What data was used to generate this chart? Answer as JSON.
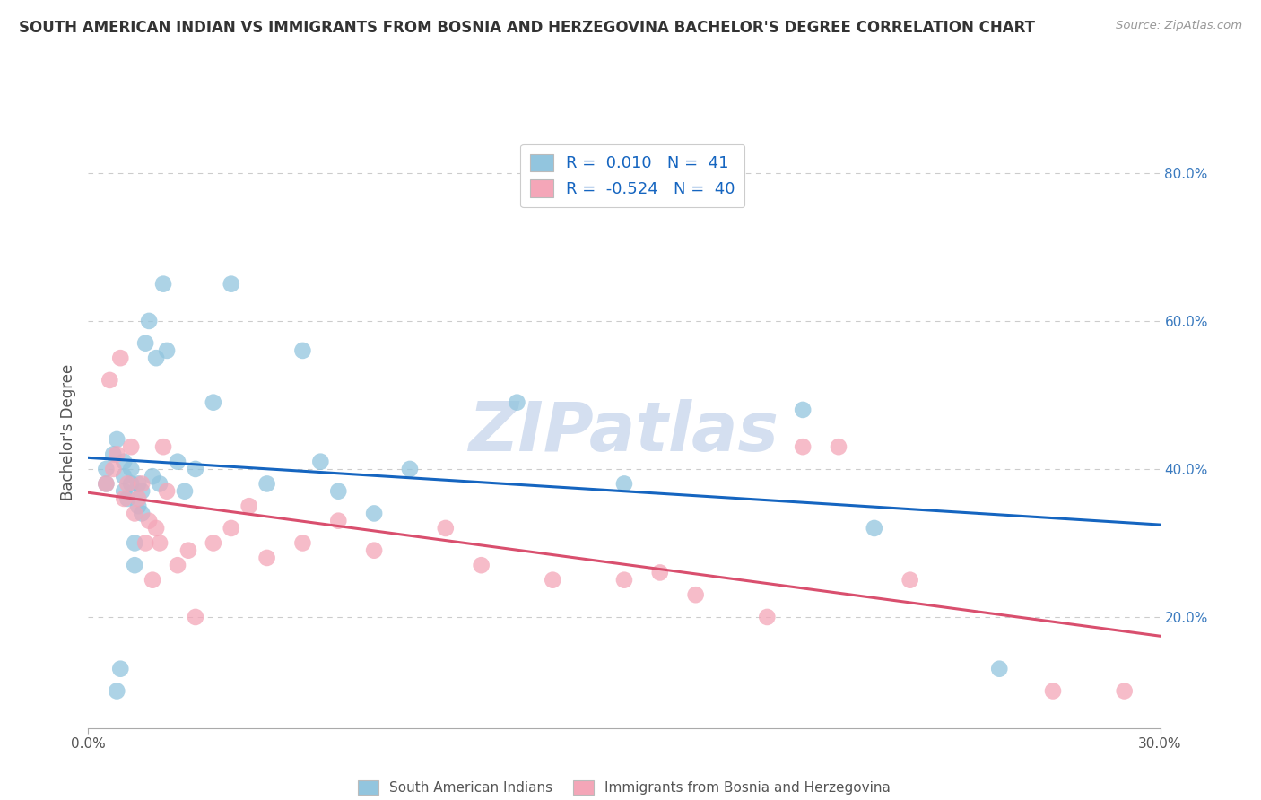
{
  "title": "SOUTH AMERICAN INDIAN VS IMMIGRANTS FROM BOSNIA AND HERZEGOVINA BACHELOR'S DEGREE CORRELATION CHART",
  "source": "Source: ZipAtlas.com",
  "ylabel": "Bachelor's Degree",
  "xlim": [
    0.0,
    0.3
  ],
  "ylim": [
    0.05,
    0.85
  ],
  "x_ticks": [
    0.0,
    0.3
  ],
  "x_tick_labels": [
    "0.0%",
    "30.0%"
  ],
  "y_ticks_right": [
    0.2,
    0.4,
    0.6,
    0.8
  ],
  "y_tick_labels_right": [
    "20.0%",
    "40.0%",
    "60.0%",
    "80.0%"
  ],
  "blue_color": "#92c5de",
  "pink_color": "#f4a6b8",
  "trend_blue": "#1565c0",
  "trend_pink": "#d94f6e",
  "legend_r_blue": "0.010",
  "legend_n_blue": "41",
  "legend_r_pink": "-0.524",
  "legend_n_pink": "40",
  "legend_label_blue": "South American Indians",
  "legend_label_pink": "Immigrants from Bosnia and Herzegovina",
  "blue_x": [
    0.005,
    0.005,
    0.007,
    0.008,
    0.008,
    0.009,
    0.01,
    0.01,
    0.01,
    0.011,
    0.012,
    0.012,
    0.013,
    0.013,
    0.014,
    0.014,
    0.015,
    0.015,
    0.016,
    0.017,
    0.018,
    0.019,
    0.02,
    0.021,
    0.022,
    0.025,
    0.027,
    0.03,
    0.035,
    0.04,
    0.05,
    0.06,
    0.065,
    0.07,
    0.08,
    0.09,
    0.12,
    0.15,
    0.2,
    0.22,
    0.255
  ],
  "blue_y": [
    0.38,
    0.4,
    0.42,
    0.44,
    0.1,
    0.13,
    0.37,
    0.39,
    0.41,
    0.36,
    0.38,
    0.4,
    0.3,
    0.27,
    0.35,
    0.38,
    0.34,
    0.37,
    0.57,
    0.6,
    0.39,
    0.55,
    0.38,
    0.65,
    0.56,
    0.41,
    0.37,
    0.4,
    0.49,
    0.65,
    0.38,
    0.56,
    0.41,
    0.37,
    0.34,
    0.4,
    0.49,
    0.38,
    0.48,
    0.32,
    0.13
  ],
  "pink_x": [
    0.005,
    0.006,
    0.007,
    0.008,
    0.009,
    0.01,
    0.011,
    0.012,
    0.013,
    0.014,
    0.015,
    0.016,
    0.017,
    0.018,
    0.019,
    0.02,
    0.021,
    0.022,
    0.025,
    0.028,
    0.03,
    0.035,
    0.04,
    0.045,
    0.05,
    0.06,
    0.07,
    0.08,
    0.1,
    0.11,
    0.13,
    0.15,
    0.16,
    0.17,
    0.19,
    0.2,
    0.21,
    0.23,
    0.27,
    0.29
  ],
  "pink_y": [
    0.38,
    0.52,
    0.4,
    0.42,
    0.55,
    0.36,
    0.38,
    0.43,
    0.34,
    0.36,
    0.38,
    0.3,
    0.33,
    0.25,
    0.32,
    0.3,
    0.43,
    0.37,
    0.27,
    0.29,
    0.2,
    0.3,
    0.32,
    0.35,
    0.28,
    0.3,
    0.33,
    0.29,
    0.32,
    0.27,
    0.25,
    0.25,
    0.26,
    0.23,
    0.2,
    0.43,
    0.43,
    0.25,
    0.1,
    0.1
  ],
  "background_color": "#ffffff",
  "grid_color": "#cccccc",
  "watermark_text": "ZIPatlas",
  "watermark_color": "#d4dff0"
}
